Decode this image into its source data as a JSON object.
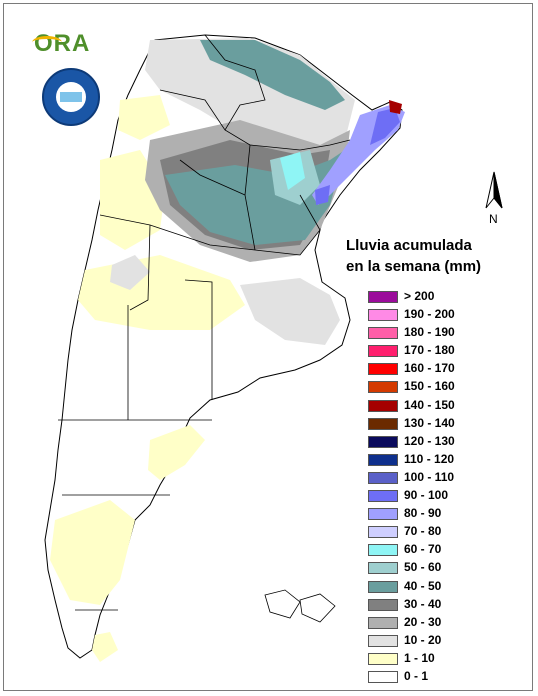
{
  "logo": {
    "text": "ORA"
  },
  "north_label": "N",
  "legend": {
    "title_line1": "Lluvia acumulada",
    "title_line2": "en la semana (mm)",
    "items": [
      {
        "label": "> 200",
        "color": "#9b0c9b"
      },
      {
        "label": "190 - 200",
        "color": "#ff8ae6"
      },
      {
        "label": "180 - 190",
        "color": "#ff5fa8"
      },
      {
        "label": "170 - 180",
        "color": "#ff1f6e"
      },
      {
        "label": "160 - 170",
        "color": "#ff0000"
      },
      {
        "label": "150 - 160",
        "color": "#d43a00"
      },
      {
        "label": "140 - 150",
        "color": "#a50000"
      },
      {
        "label": "130 - 140",
        "color": "#6b2a00"
      },
      {
        "label": "120 - 130",
        "color": "#0a0a5c"
      },
      {
        "label": "110 - 120",
        "color": "#0e2f8c"
      },
      {
        "label": "100 - 110",
        "color": "#5a60c8"
      },
      {
        "label": "90 - 100",
        "color": "#6e6ef5"
      },
      {
        "label": "80 - 90",
        "color": "#a0a0ff"
      },
      {
        "label": "70 - 80",
        "color": "#cfcfff"
      },
      {
        "label": "60 - 70",
        "color": "#8ff5f5"
      },
      {
        "label": "50 - 60",
        "color": "#9ecfcf"
      },
      {
        "label": "40 - 50",
        "color": "#6a9e9e"
      },
      {
        "label": "30 - 40",
        "color": "#808080"
      },
      {
        "label": "20 - 30",
        "color": "#b0b0b0"
      },
      {
        "label": "10 - 20",
        "color": "#e2e2e2"
      },
      {
        "label": "1 - 10",
        "color": "#ffffc8"
      },
      {
        "label": "0 - 1",
        "color": "#ffffff"
      }
    ]
  }
}
